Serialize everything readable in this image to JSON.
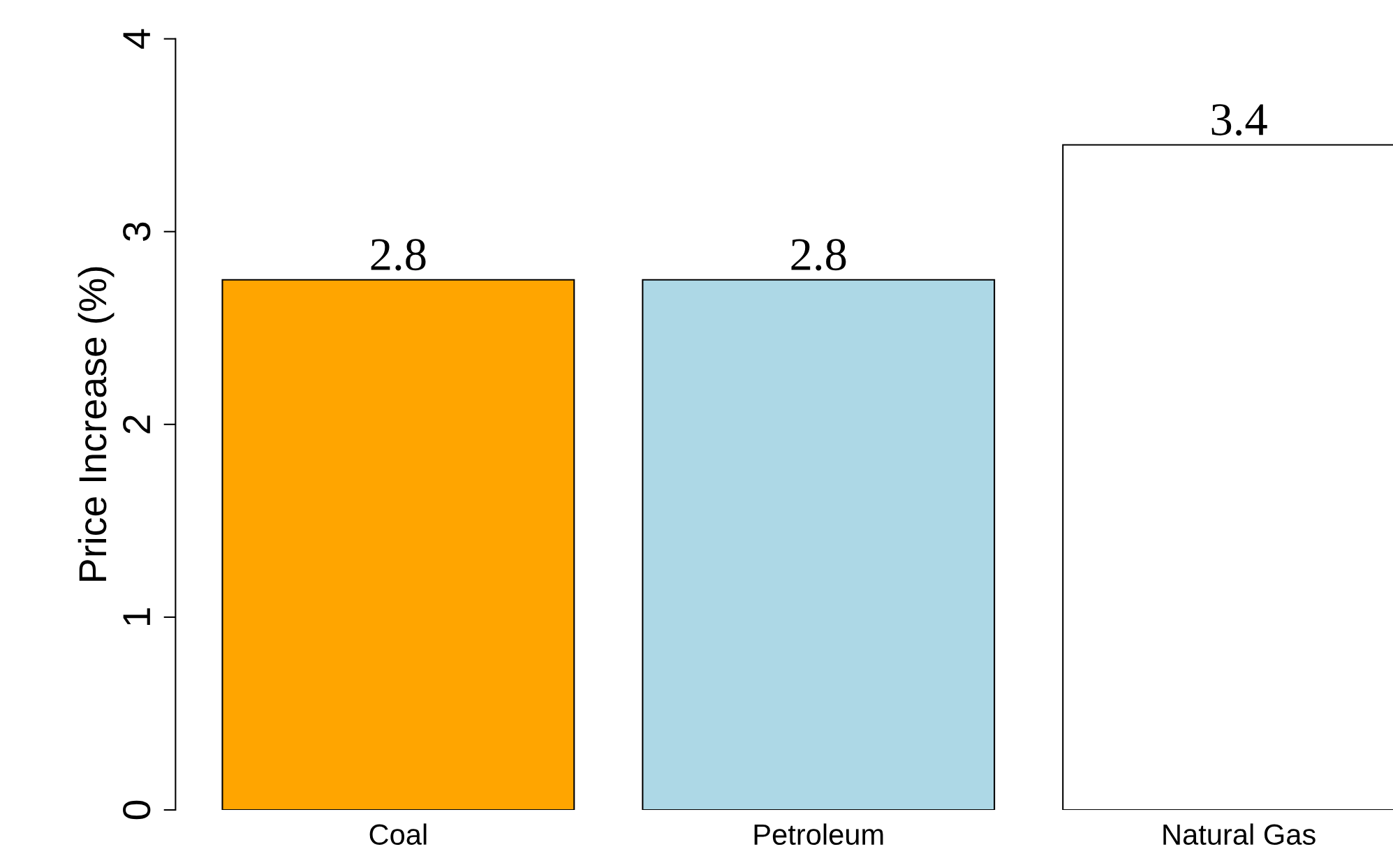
{
  "chart_data": {
    "type": "bar",
    "ylabel": "Price Increase (%)",
    "categories": [
      "Coal",
      "Petroleum",
      "Natural Gas"
    ],
    "values": [
      2.75,
      2.75,
      3.45
    ],
    "value_labels": [
      "2.8",
      "2.8",
      "3.4"
    ],
    "colors": [
      "#ffa500",
      "#add8e6",
      "#ffffff"
    ],
    "ylim": [
      0,
      4
    ],
    "yticks": [
      0,
      1,
      2,
      3,
      4
    ],
    "grid": false,
    "legend": false
  }
}
